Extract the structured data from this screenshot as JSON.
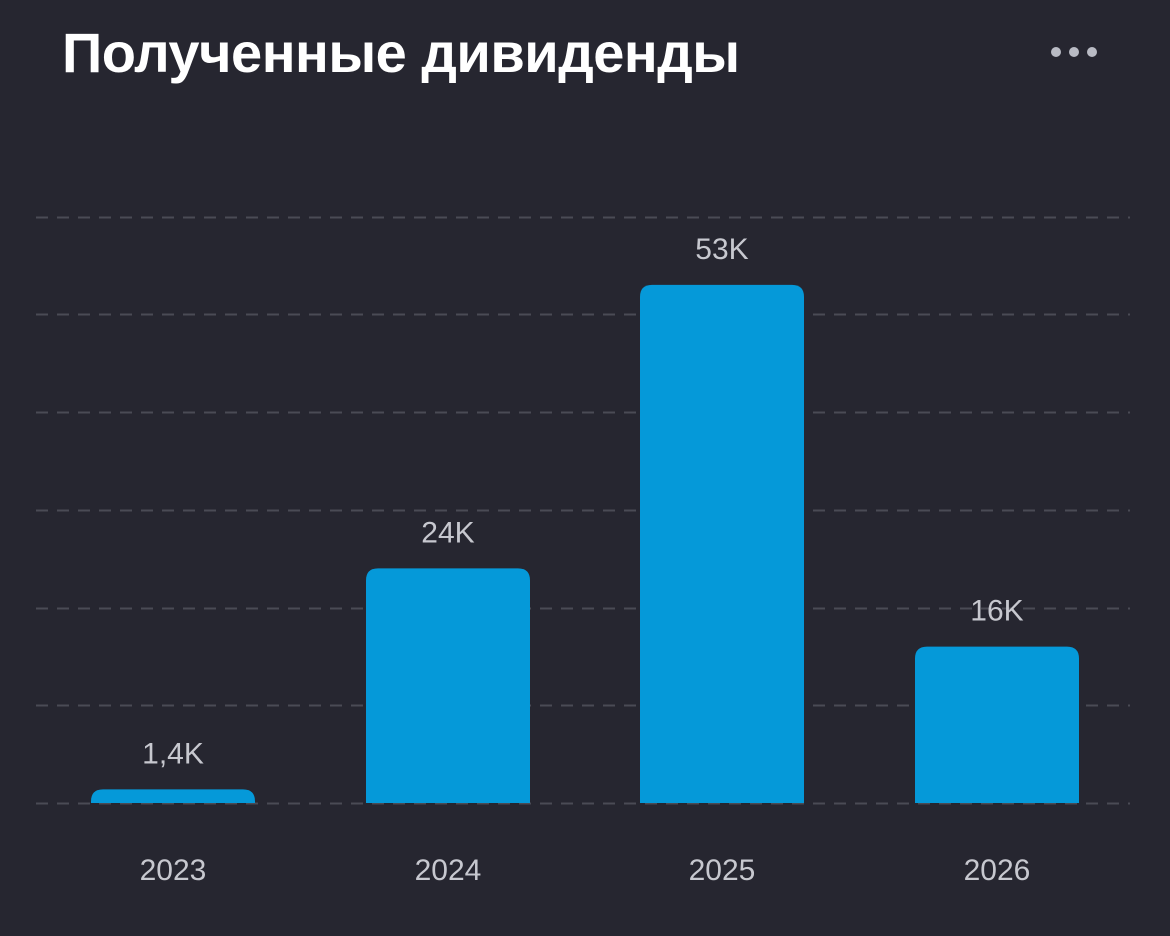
{
  "header": {
    "title": "Полученные дивиденды",
    "more_icon": "more-horizontal-icon"
  },
  "colors": {
    "background": "#262630",
    "bar": "#0599d9",
    "grid": "#4a4b55",
    "label": "#c7c8cf",
    "title": "#ffffff"
  },
  "chart_data": {
    "type": "bar",
    "categories": [
      "2023",
      "2024",
      "2025",
      "2026"
    ],
    "values": [
      1400,
      24000,
      53000,
      16000
    ],
    "data_labels": [
      "1,4K",
      "24K",
      "53K",
      "16K"
    ],
    "title": "Полученные дивиденды",
    "xlabel": "",
    "ylabel": "",
    "ylim": [
      0,
      60000
    ],
    "grid": true,
    "legend": "none"
  }
}
